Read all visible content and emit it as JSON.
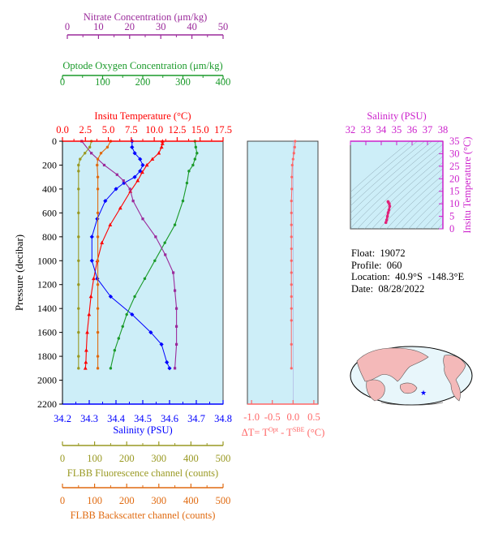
{
  "colors": {
    "nitrate": "#9b2a9b",
    "oxygen": "#1a9a2a",
    "temperature": "#ff0000",
    "salinity": "#0000ff",
    "fluorescence": "#999922",
    "backscatter": "#e06a10",
    "delta_t": "#ff6666",
    "panel_bg": "#cdeef8",
    "ts_salinity_axis": "#cc22cc"
  },
  "info": {
    "float": "Float:  19072",
    "profile": "Profile:  060",
    "location": "Location:  40.9°S  -148.3°E",
    "date": "Date:  08/28/2022"
  },
  "axes": {
    "nitrate": {
      "title": "Nitrate Concentration (μm/kg)",
      "ticks": [
        "0",
        "10",
        "20",
        "30",
        "40",
        "50"
      ]
    },
    "oxygen": {
      "title": "Optode Oxygen Concentration (μm/kg)",
      "ticks": [
        "0",
        "100",
        "200",
        "300",
        "400"
      ]
    },
    "temperature": {
      "title": "Insitu Temperature (°C)",
      "ticks": [
        "0.0",
        "2.5",
        "5.0",
        "7.5",
        "10.0",
        "12.5",
        "15.0",
        "17.5"
      ]
    },
    "salinity": {
      "title": "Salinity (PSU)",
      "ticks": [
        "34.2",
        "34.3",
        "34.4",
        "34.5",
        "34.6",
        "34.7",
        "34.8"
      ]
    },
    "pressure": {
      "title": "Pressure (decibar)",
      "ticks": [
        "0",
        "200",
        "400",
        "600",
        "800",
        "1000",
        "1200",
        "1400",
        "1600",
        "1800",
        "2000",
        "2200"
      ]
    },
    "fluorescence": {
      "title": "FLBB Fluorescence channel (counts)",
      "ticks": [
        "0",
        "100",
        "200",
        "300",
        "400",
        "500"
      ]
    },
    "backscatter": {
      "title": "FLBB Backscatter channel (counts)",
      "ticks": [
        "0",
        "100",
        "200",
        "300",
        "400",
        "500"
      ]
    },
    "delta_t": {
      "title_main": "ΔT= T",
      "title_sup1": "Opt",
      "title_mid": " - T",
      "title_sup2": "SBE",
      "title_unit": " (°C)",
      "ticks": [
        "-1.0",
        "-0.5",
        "0.0",
        "0.5"
      ]
    },
    "ts_salinity": {
      "title": "Salinity (PSU)",
      "ticks": [
        "32",
        "33",
        "34",
        "35",
        "36",
        "37",
        "38"
      ]
    },
    "ts_temperature": {
      "title": "Insitu Temperature (°C)",
      "ticks": [
        "0",
        "5",
        "10",
        "15",
        "20",
        "25",
        "30",
        "35"
      ]
    }
  },
  "chart_data": [
    {
      "type": "line",
      "title": "",
      "ylabel": "Pressure (decibar)",
      "ylim": [
        2200,
        0
      ],
      "grid": false,
      "series": [
        {
          "name": "Insitu Temperature (°C)",
          "xlim": [
            0,
            17.5
          ],
          "x": [
            10.9,
            10.9,
            10.8,
            10.5,
            9.8,
            9.2,
            8.7,
            8.2,
            7.4,
            6.3,
            5.2,
            4.3,
            3.8,
            3.4,
            3.1,
            2.9,
            2.7,
            2.6,
            2.55,
            2.5
          ],
          "y": [
            0,
            20,
            50,
            100,
            150,
            200,
            260,
            330,
            420,
            560,
            700,
            850,
            1000,
            1150,
            1300,
            1450,
            1600,
            1750,
            1850,
            1900
          ]
        },
        {
          "name": "Salinity (PSU)",
          "xlim": [
            34.2,
            34.8
          ],
          "x": [
            34.46,
            34.46,
            34.47,
            34.49,
            34.5,
            34.49,
            34.47,
            34.43,
            34.4,
            34.36,
            34.33,
            34.31,
            34.31,
            34.33,
            34.38,
            34.46,
            34.53,
            34.57,
            34.59,
            34.6
          ],
          "y": [
            0,
            50,
            100,
            150,
            200,
            250,
            300,
            350,
            400,
            500,
            650,
            800,
            1000,
            1150,
            1300,
            1450,
            1600,
            1700,
            1850,
            1900
          ]
        },
        {
          "name": "Optode Oxygen Concentration (μm/kg)",
          "xlim": [
            0,
            400
          ],
          "x": [
            330,
            332,
            335,
            330,
            325,
            315,
            310,
            300,
            280,
            255,
            230,
            205,
            180,
            160,
            150,
            140,
            130,
            120
          ],
          "y": [
            0,
            50,
            100,
            150,
            200,
            250,
            350,
            500,
            700,
            850,
            1000,
            1150,
            1300,
            1450,
            1550,
            1650,
            1750,
            1900
          ]
        },
        {
          "name": "Nitrate Concentration (μm/kg)",
          "xlim": [
            0,
            50
          ],
          "x": [
            6,
            9,
            13,
            17,
            19,
            21,
            22,
            25,
            29,
            32,
            34.5,
            35,
            35.5,
            35.5,
            35.5,
            35
          ],
          "y": [
            0,
            100,
            200,
            280,
            330,
            400,
            500,
            650,
            800,
            950,
            1100,
            1250,
            1400,
            1550,
            1700,
            1900
          ]
        },
        {
          "name": "FLBB Fluorescence channel (counts)",
          "xlim": [
            0,
            500
          ],
          "x": [
            90,
            85,
            70,
            55,
            50,
            50,
            50,
            50,
            50,
            50,
            50,
            50,
            50,
            50,
            50
          ],
          "y": [
            0,
            50,
            100,
            150,
            200,
            250,
            400,
            600,
            800,
            1000,
            1200,
            1400,
            1600,
            1800,
            1900
          ]
        },
        {
          "name": "FLBB Backscatter channel (counts)",
          "xlim": [
            0,
            500
          ],
          "x": [
            150,
            140,
            120,
            110,
            108,
            110,
            110,
            110,
            110,
            110,
            110,
            110,
            110,
            110,
            110
          ],
          "y": [
            0,
            50,
            100,
            150,
            200,
            300,
            400,
            600,
            800,
            1000,
            1200,
            1400,
            1600,
            1800,
            1900
          ]
        }
      ]
    },
    {
      "type": "scatter",
      "title": "",
      "xlabel": "ΔT= TOpt - TSBE (°C)",
      "xlim": [
        -1.1,
        0.6
      ],
      "ylim": [
        2200,
        0
      ],
      "series": [
        {
          "name": "",
          "x": [
            0.05,
            0.04,
            0.02,
            0.0,
            -0.02,
            -0.03,
            -0.03,
            -0.04,
            -0.04,
            -0.04,
            -0.04,
            -0.04,
            -0.04,
            -0.04,
            -0.04,
            -0.04,
            -0.04,
            -0.04,
            -0.04,
            -0.04
          ],
          "y": [
            0,
            50,
            100,
            150,
            200,
            300,
            400,
            500,
            600,
            700,
            800,
            900,
            1000,
            1100,
            1200,
            1300,
            1400,
            1500,
            1700,
            1900
          ]
        }
      ]
    },
    {
      "type": "scatter",
      "title": "",
      "xlabel": "Salinity (PSU)",
      "ylabel": "Insitu Temperature (°C)",
      "xlim": [
        32,
        38
      ],
      "ylim": [
        0,
        35
      ],
      "series": [
        {
          "name": "",
          "x": [
            34.3,
            34.35,
            34.4,
            34.45,
            34.5,
            34.55,
            34.52,
            34.46,
            34.44
          ],
          "y": [
            2.5,
            3.5,
            5,
            6.5,
            7.5,
            9,
            10,
            10.6,
            10.9
          ]
        }
      ]
    }
  ]
}
